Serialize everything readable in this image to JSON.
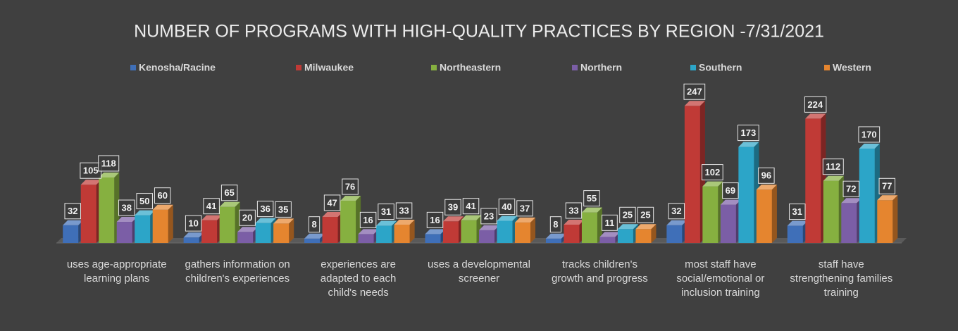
{
  "chart_data": {
    "type": "bar3d",
    "title": "NUMBER OF PROGRAMS WITH HIGH-QUALITY PRACTICES BY REGION -7/31/2021",
    "categories": [
      "uses age-appropriate learning plans",
      "gathers information on children's experiences",
      "experiences are adapted to each child's needs",
      "uses a developmental screener",
      "tracks children's growth and progress",
      "most staff have social/emotional or inclusion training",
      "staff have strengthening families training"
    ],
    "series": [
      {
        "name": "Kenosha/Racine",
        "color": "#3f6fb8",
        "values": [
          32,
          10,
          8,
          16,
          8,
          32,
          31
        ]
      },
      {
        "name": "Milwaukee",
        "color": "#c03a36",
        "values": [
          105,
          41,
          47,
          39,
          33,
          247,
          224
        ]
      },
      {
        "name": "Northeastern",
        "color": "#86b040",
        "values": [
          118,
          65,
          76,
          41,
          55,
          102,
          112
        ]
      },
      {
        "name": "Northern",
        "color": "#7b5ea6",
        "values": [
          38,
          20,
          16,
          23,
          11,
          69,
          72
        ]
      },
      {
        "name": "Southern",
        "color": "#2ca5c8",
        "values": [
          50,
          36,
          31,
          40,
          25,
          173,
          170
        ]
      },
      {
        "name": "Western",
        "color": "#e5852f",
        "values": [
          60,
          35,
          33,
          37,
          25,
          96,
          77
        ]
      }
    ],
    "ylim": [
      0,
      260
    ]
  }
}
